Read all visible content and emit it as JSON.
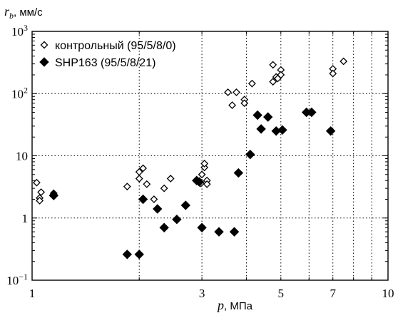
{
  "chart_data": {
    "type": "scatter",
    "title": "",
    "x_scale": "log",
    "y_scale": "log",
    "xlim": [
      1,
      10
    ],
    "ylim": [
      0.1,
      1000
    ],
    "grid": true,
    "legend_position": "top-left",
    "ylabel": {
      "var": "r",
      "sub": "b",
      "unit": ", мм/с"
    },
    "xlabel": {
      "var": "p",
      "unit": ", МПа"
    },
    "x_ticks": [
      {
        "value": 1,
        "label": "1"
      },
      {
        "value": 3,
        "label": "3"
      },
      {
        "value": 5,
        "label": "5"
      },
      {
        "value": 7,
        "label": "7"
      },
      {
        "value": 10,
        "label": "10"
      }
    ],
    "y_ticks": [
      {
        "value": 0.1,
        "base": "10",
        "exp": "−1"
      },
      {
        "value": 1,
        "label": "1"
      },
      {
        "value": 10,
        "label": "10"
      },
      {
        "value": 100,
        "base": "10",
        "exp": "2"
      },
      {
        "value": 1000,
        "base": "10",
        "exp": "3"
      }
    ],
    "x_grid": [
      2,
      3,
      4,
      5,
      6,
      7,
      8,
      9
    ],
    "y_grid": [
      1,
      10,
      100
    ],
    "series": [
      {
        "name": "контрольный (95/5/8/0)",
        "marker": "diamond-open",
        "color": "#000000",
        "points": [
          [
            1.03,
            3.7
          ],
          [
            1.05,
            2.1
          ],
          [
            1.06,
            2.6
          ],
          [
            1.05,
            1.9
          ],
          [
            1.15,
            2.5
          ],
          [
            1.15,
            2.4
          ],
          [
            1.85,
            3.2
          ],
          [
            2.0,
            5.5
          ],
          [
            2.0,
            4.3
          ],
          [
            2.05,
            6.3
          ],
          [
            2.1,
            3.5
          ],
          [
            2.2,
            2.0
          ],
          [
            2.35,
            3.0
          ],
          [
            2.45,
            4.3
          ],
          [
            2.9,
            4.0
          ],
          [
            2.98,
            3.6
          ],
          [
            3.0,
            5.0
          ],
          [
            3.05,
            6.5
          ],
          [
            3.05,
            7.5
          ],
          [
            3.1,
            4.0
          ],
          [
            3.1,
            3.5
          ],
          [
            3.55,
            105
          ],
          [
            3.65,
            65
          ],
          [
            3.75,
            105
          ],
          [
            3.95,
            80
          ],
          [
            3.95,
            70
          ],
          [
            4.15,
            145
          ],
          [
            4.75,
            290
          ],
          [
            4.75,
            155
          ],
          [
            4.85,
            185
          ],
          [
            4.9,
            175
          ],
          [
            5.0,
            240
          ],
          [
            5.0,
            200
          ],
          [
            7.0,
            250
          ],
          [
            7.0,
            210
          ],
          [
            7.5,
            330
          ]
        ]
      },
      {
        "name": "SHP163 (95/5/8/21)",
        "marker": "diamond-filled",
        "color": "#000000",
        "points": [
          [
            1.15,
            2.3
          ],
          [
            1.85,
            0.26
          ],
          [
            2.0,
            0.26
          ],
          [
            2.05,
            2.0
          ],
          [
            2.25,
            1.4
          ],
          [
            2.35,
            0.7
          ],
          [
            2.55,
            0.95
          ],
          [
            2.7,
            1.6
          ],
          [
            2.9,
            4.0
          ],
          [
            2.95,
            3.8
          ],
          [
            3.0,
            0.7
          ],
          [
            3.35,
            0.6
          ],
          [
            3.7,
            0.6
          ],
          [
            3.8,
            5.3
          ],
          [
            4.1,
            10.5
          ],
          [
            4.3,
            45
          ],
          [
            4.4,
            27
          ],
          [
            4.6,
            42
          ],
          [
            4.85,
            25
          ],
          [
            5.05,
            26
          ],
          [
            5.9,
            50
          ],
          [
            6.1,
            50
          ],
          [
            6.9,
            25
          ]
        ]
      }
    ]
  }
}
